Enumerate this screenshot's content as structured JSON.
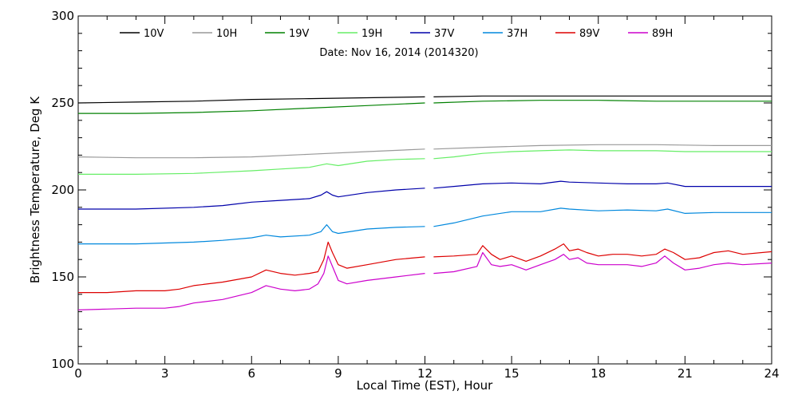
{
  "chart_data": {
    "type": "line",
    "subtitle": "Date: Nov 16, 2014 (2014320)",
    "xlabel": "Local Time (EST), Hour",
    "ylabel": "Brightness Temperature, Deg K",
    "xlim": [
      0,
      24
    ],
    "ylim": [
      100,
      300
    ],
    "x_ticks": [
      0,
      3,
      6,
      9,
      12,
      15,
      18,
      21,
      24
    ],
    "x_tick_labels": [
      "0",
      "3",
      "6",
      "9",
      "12",
      "15",
      "18",
      "21",
      "24"
    ],
    "y_ticks": [
      100,
      150,
      200,
      250,
      300
    ],
    "y_tick_labels": [
      "100",
      "150",
      "200",
      "250",
      "300"
    ],
    "grid": false,
    "legend_position": "top",
    "data_gap_hours": [
      12.0,
      12.3
    ],
    "series": [
      {
        "name": "10V",
        "color": "#000000",
        "x": [
          0,
          2,
          4,
          6,
          8,
          10,
          12,
          12.3,
          14,
          16,
          18,
          20,
          22,
          24
        ],
        "y": [
          250,
          250.5,
          251,
          252,
          252.5,
          253,
          253.5,
          253.5,
          254,
          254,
          254,
          254,
          254,
          254
        ]
      },
      {
        "name": "10H",
        "color": "#999999",
        "x": [
          0,
          2,
          4,
          6,
          8,
          10,
          12,
          12.3,
          14,
          16,
          18,
          20,
          22,
          24
        ],
        "y": [
          219,
          218.5,
          218.5,
          219,
          220.5,
          222,
          223.5,
          223.5,
          224.5,
          225.5,
          226,
          226,
          225.5,
          225.5
        ]
      },
      {
        "name": "19V",
        "color": "#008000",
        "x": [
          0,
          2,
          4,
          6,
          8,
          10,
          12,
          12.3,
          14,
          16,
          18,
          20,
          22,
          24
        ],
        "y": [
          244,
          244,
          244.5,
          245.5,
          247,
          248.5,
          250,
          250,
          251,
          251.5,
          251.5,
          251,
          251,
          251
        ]
      },
      {
        "name": "19H",
        "color": "#66ee66",
        "x": [
          0,
          2,
          4,
          6,
          7,
          8,
          8.6,
          9,
          10,
          11,
          12,
          12.3,
          13,
          14,
          15,
          16,
          17,
          18,
          19,
          20,
          21,
          22,
          24
        ],
        "y": [
          209,
          209,
          209.5,
          211,
          212,
          213,
          215,
          214,
          216.5,
          217.5,
          218,
          218,
          219,
          221,
          222,
          222.5,
          223,
          222.5,
          222.5,
          222.5,
          222,
          222,
          222
        ]
      },
      {
        "name": "37V",
        "color": "#0000aa",
        "x": [
          0,
          2,
          4,
          5,
          6,
          7,
          8,
          8.4,
          8.6,
          8.8,
          9,
          10,
          11,
          12,
          12.3,
          13,
          14,
          15,
          16,
          16.7,
          17,
          18,
          19,
          20,
          20.4,
          21,
          22,
          24
        ],
        "y": [
          189,
          189,
          190,
          191,
          193,
          194,
          195,
          197,
          199,
          197,
          196,
          198.5,
          200,
          201,
          201,
          202,
          203.5,
          204,
          203.5,
          205,
          204.5,
          204,
          203.5,
          203.5,
          204,
          202,
          202,
          202
        ]
      },
      {
        "name": "37H",
        "color": "#0088dd",
        "x": [
          0,
          2,
          4,
          5,
          6,
          6.5,
          7,
          8,
          8.4,
          8.6,
          8.8,
          9,
          10,
          11,
          12,
          12.3,
          13,
          14,
          15,
          16,
          16.7,
          17,
          18,
          19,
          20,
          20.4,
          21,
          22,
          24
        ],
        "y": [
          169,
          169,
          170,
          171,
          172.5,
          174,
          173,
          174,
          176,
          180,
          176,
          175,
          177.5,
          178.5,
          179,
          179,
          181,
          185,
          187.5,
          187.5,
          189.5,
          189,
          188,
          188.5,
          188,
          189,
          186.5,
          187,
          187
        ]
      },
      {
        "name": "89V",
        "color": "#dd0000",
        "x": [
          0,
          1,
          2,
          3,
          3.5,
          4,
          5,
          6,
          6.5,
          7,
          7.5,
          8,
          8.3,
          8.5,
          8.65,
          8.8,
          9,
          9.3,
          10,
          11,
          12,
          12.3,
          13,
          13.8,
          14,
          14.3,
          14.6,
          15,
          15.5,
          16,
          16.5,
          16.8,
          17,
          17.3,
          17.6,
          18,
          18.5,
          19,
          19.5,
          20,
          20.3,
          20.6,
          21,
          21.5,
          22,
          22.5,
          23,
          24
        ],
        "y": [
          141,
          141,
          142,
          142,
          143,
          145,
          147,
          150,
          154,
          152,
          151,
          152,
          153,
          160,
          170,
          164,
          157,
          155,
          157,
          160,
          161.5,
          161.5,
          162,
          163,
          168,
          163,
          160,
          162,
          159,
          162,
          166,
          169,
          165,
          166,
          164,
          162,
          163,
          163,
          162,
          163,
          166,
          164,
          160,
          161,
          164,
          165,
          163,
          164.5
        ]
      },
      {
        "name": "89H",
        "color": "#cc00cc",
        "x": [
          0,
          1,
          2,
          3,
          3.5,
          4,
          5,
          6,
          6.5,
          7,
          7.5,
          8,
          8.3,
          8.5,
          8.65,
          8.8,
          9,
          9.3,
          10,
          11,
          12,
          12.3,
          13,
          13.8,
          14,
          14.3,
          14.6,
          15,
          15.5,
          16,
          16.5,
          16.8,
          17,
          17.3,
          17.6,
          18,
          18.5,
          19,
          19.5,
          20,
          20.3,
          20.6,
          21,
          21.5,
          22,
          22.5,
          23,
          24
        ],
        "y": [
          131,
          131.5,
          132,
          132,
          133,
          135,
          137,
          141,
          145,
          143,
          142,
          143,
          146,
          152,
          162,
          156,
          148,
          146,
          148,
          150,
          152,
          152,
          153,
          156,
          164,
          157,
          156,
          157,
          154,
          157,
          160,
          163,
          160,
          161,
          158,
          157,
          157,
          157,
          156,
          158,
          162,
          158,
          154,
          155,
          157,
          158,
          157,
          158
        ]
      }
    ]
  }
}
